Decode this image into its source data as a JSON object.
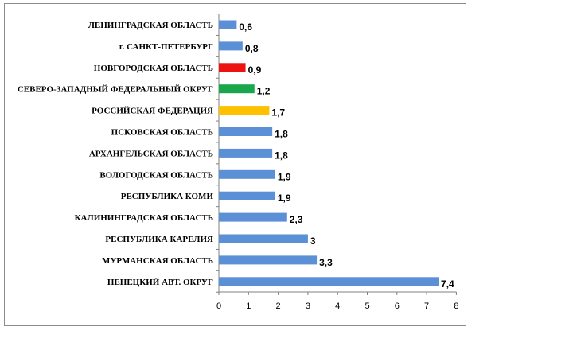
{
  "chart_data": {
    "type": "bar",
    "orientation": "horizontal",
    "categories": [
      "ЛЕНИНГРАДСКАЯ ОБЛАСТЬ",
      "г. САНКТ-ПЕТЕРБУРГ",
      "НОВГОРОДСКАЯ ОБЛАСТЬ",
      "СЕВЕРО-ЗАПАДНЫЙ ФЕДЕРАЛЬНЫЙ ОКРУГ",
      "РОССИЙСКАЯ ФЕДЕРАЦИЯ",
      "ПСКОВСКАЯ ОБЛАСТЬ",
      "АРХАНГЕЛЬСКАЯ ОБЛАСТЬ",
      "ВОЛОГОДСКАЯ ОБЛАСТЬ",
      "РЕСПУБЛИКА КОМИ",
      "КАЛИНИНГРАДСКАЯ ОБЛАСТЬ",
      "РЕСПУБЛИКА КАРЕЛИЯ",
      "МУРМАНСКАЯ ОБЛАСТЬ",
      "НЕНЕЦКИЙ АВТ. ОКРУГ"
    ],
    "values": [
      0.6,
      0.8,
      0.9,
      1.2,
      1.7,
      1.8,
      1.8,
      1.9,
      1.9,
      2.3,
      3,
      3.3,
      7.4
    ],
    "value_labels": [
      "0,6",
      "0,8",
      "0,9",
      "1,2",
      "1,7",
      "1,8",
      "1,8",
      "1,9",
      "1,9",
      "2,3",
      "3",
      "3,3",
      "7,4"
    ],
    "bar_colors": [
      "#5b8fd6",
      "#5b8fd6",
      "#ee1111",
      "#1aa64a",
      "#ffc000",
      "#5b8fd6",
      "#5b8fd6",
      "#5b8fd6",
      "#5b8fd6",
      "#5b8fd6",
      "#5b8fd6",
      "#5b8fd6",
      "#5b8fd6"
    ],
    "xlim": [
      0,
      8
    ],
    "x_ticks": [
      "0",
      "1",
      "2",
      "3",
      "4",
      "5",
      "6",
      "7",
      "8"
    ],
    "grid": false,
    "legend": "none",
    "title": "",
    "xlabel": "",
    "ylabel": ""
  }
}
